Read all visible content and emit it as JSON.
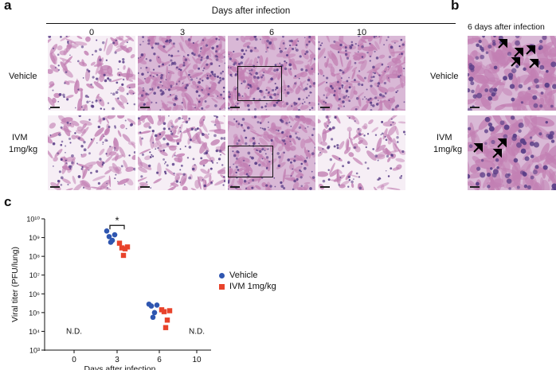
{
  "panel_a": {
    "letter": "a",
    "header": "Days after infection",
    "days": [
      "0",
      "3",
      "6",
      "10"
    ],
    "rows": [
      {
        "label_line1": "Vehicle",
        "label_line2": ""
      },
      {
        "label_line1": "IVM",
        "label_line2": "1mg/kg"
      }
    ],
    "tile_style": {
      "bg": "#e9d3e4",
      "tissue": "#c27fb3",
      "nuclei": "#5a3d87"
    },
    "tile_density": [
      [
        0.35,
        0.85,
        0.8,
        0.65
      ],
      [
        0.35,
        0.45,
        0.65,
        0.3
      ]
    ]
  },
  "panel_b": {
    "letter": "b",
    "title": "6 days after infection",
    "rows": [
      {
        "label_line1": "Vehicle",
        "label_line2": ""
      },
      {
        "label_line1": "IVM",
        "label_line2": "1mg/kg"
      }
    ]
  },
  "panel_c": {
    "letter": "c",
    "chart_data": {
      "type": "scatter",
      "xlabel": "Days after infection",
      "ylabel": "Viral titer (PFU/lung)",
      "x_ticks": [
        "0",
        "3",
        "6",
        "10"
      ],
      "y_log_scale": true,
      "ylim_exponents": [
        3,
        10
      ],
      "y_ticks": [
        "10³",
        "10⁴",
        "10⁵",
        "10⁶",
        "10⁷",
        "10⁸",
        "10⁹",
        "10¹⁰"
      ],
      "series": [
        {
          "name": "Vehicle",
          "marker": "circle",
          "color": "#2f56b0",
          "points": [
            {
              "x": "3",
              "log10_y": [
                9.35,
                9.15,
                9.05,
                8.85,
                8.75
              ]
            },
            {
              "x": "6",
              "log10_y": [
                5.45,
                5.4,
                5.35,
                5.0,
                4.75
              ]
            }
          ]
        },
        {
          "name": "IVM 1mg/kg",
          "marker": "square",
          "color": "#e8432b",
          "points": [
            {
              "x": "3",
              "log10_y": [
                8.7,
                8.5,
                8.45,
                8.4,
                8.05
              ]
            },
            {
              "x": "6",
              "log10_y": [
                5.15,
                5.1,
                5.05,
                4.6,
                4.2
              ]
            }
          ]
        }
      ],
      "nd_labels": [
        {
          "x": "0",
          "text": "N.D."
        },
        {
          "x": "10",
          "text": "N.D."
        }
      ],
      "significance": {
        "between_x": "3",
        "text": "*"
      },
      "legend_placement": "right"
    }
  }
}
